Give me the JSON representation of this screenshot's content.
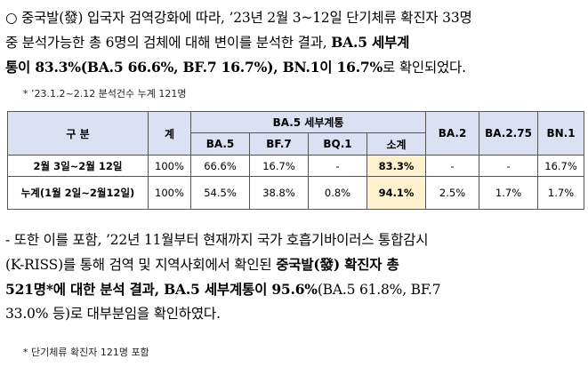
{
  "para1": {
    "line1": "○ 중국발(發) 입국자 검역강화에 따라, ’23년 2월 3~12일 단기체류 확진자 33명",
    "line2_a": "중 분석가능한 총 6명의 검체에 대해 변이를 분석한 결과, ",
    "line2_b": "BA.5 세부계",
    "line3_a": "통이 83.3%(BA.5 66.6%, BF.7 16.7%), BN.1이 16.7%",
    "line3_b": "로 확인되었다."
  },
  "note1": "* ’23.1.2~2.12 분석건수 누계 121명",
  "table": {
    "header": {
      "col_group": "구 분",
      "col_total": "계",
      "col_ba5_group": "BA.5 세부계통",
      "sub": [
        "BA.5",
        "BF.7",
        "BQ.1",
        "소계"
      ],
      "col_ba2": "BA.2",
      "col_ba275": "BA.2.75",
      "col_bn1": "BN.1"
    },
    "rows": [
      {
        "label": "2월 3일~2월 12일",
        "total": "100%",
        "ba5": "66.6%",
        "bf7": "16.7%",
        "bq1": "-",
        "subtotal": "83.3%",
        "ba2": "-",
        "ba275": "-",
        "bn1": "16.7%"
      },
      {
        "label": "누계(1월 2일~2월12일)",
        "total": "100%",
        "ba5": "54.5%",
        "bf7": "38.8%",
        "bq1": "0.8%",
        "subtotal": "94.1%",
        "ba2": "2.5%",
        "ba275": "1.7%",
        "bn1": "1.7%"
      }
    ]
  },
  "para2": {
    "line1": "- 또한 이를 포함, ’22년 11월부터 현재까지 국가 호흡기바이러스 통합감시",
    "line2_a": "(K-RISS)를 통해 검역 및 지역사회에서 확인된 ",
    "line2_b": "중국발(發) 확진자 총",
    "line3_a": "521명*에 대한 분석 결과, BA.5 세부계통이 95.6%",
    "line3_b": "(BA.5 61.8%, BF.7",
    "line4": "33.0% 등)로 대부분임을 확인하였다."
  },
  "note2": "* 단기체류 확진자 121명 포함"
}
